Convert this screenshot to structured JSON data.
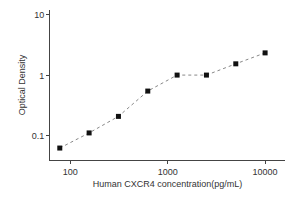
{
  "chart_data": {
    "type": "line",
    "x": [
      78.125,
      156.25,
      312.5,
      625,
      1250,
      2500,
      5000,
      10000
    ],
    "values": [
      0.063,
      0.112,
      0.21,
      0.55,
      1.01,
      1.01,
      1.55,
      2.35
    ],
    "xlabel": "Human CXCR4 concentration(pg/mL)",
    "ylabel": "Optical Density",
    "xlim": [
      62,
      16000
    ],
    "ylim": [
      0.04,
      12
    ],
    "xticks": [
      100,
      1000,
      10000
    ],
    "yticks": [
      0.1,
      1,
      10
    ],
    "log": true,
    "grid": false,
    "color": "#888888",
    "colors": [
      "#111111",
      "#111111",
      "#111111",
      "#111111",
      "#111111",
      "#111111",
      "#111111",
      "#111111"
    ],
    "marker": "square",
    "line_style": "dotted"
  }
}
